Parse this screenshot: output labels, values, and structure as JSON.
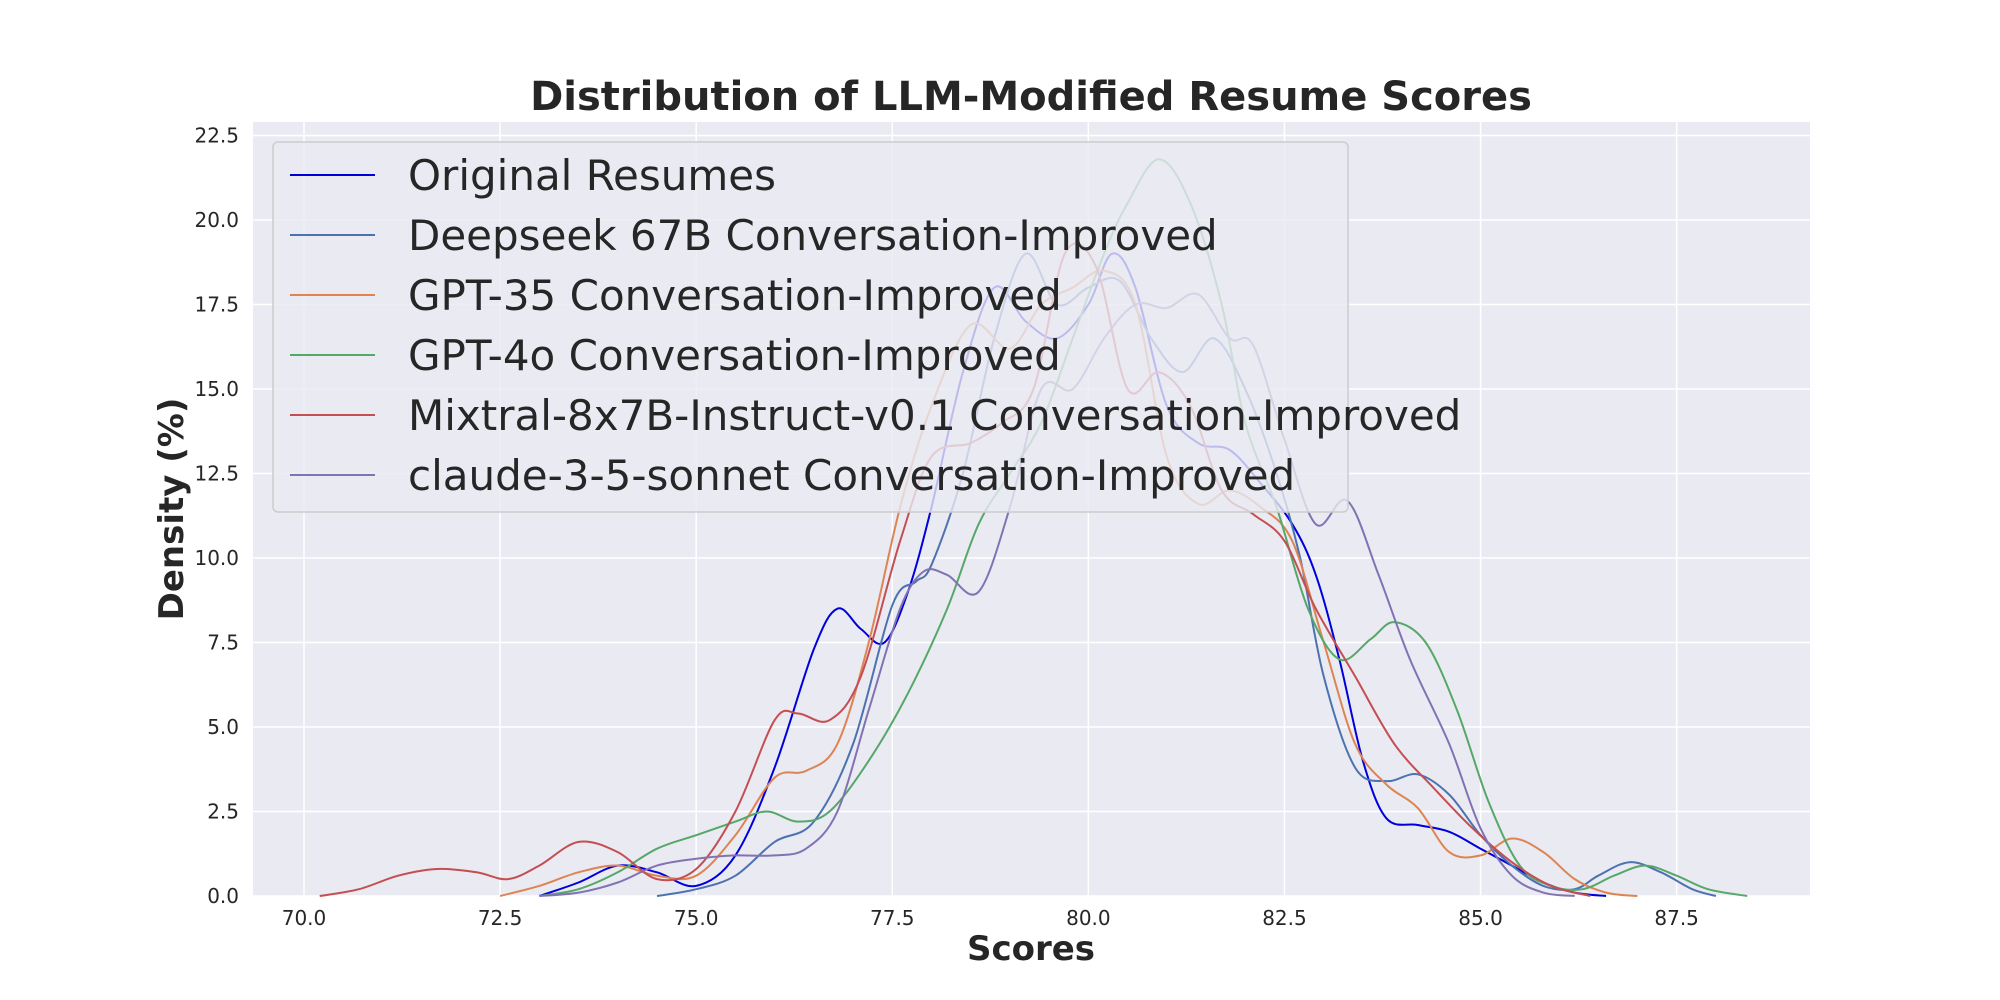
{
  "chart_data": {
    "type": "line",
    "title": "Distribution of LLM-Modified Resume Scores",
    "xlabel": "Scores",
    "ylabel": "Density (%)",
    "xlim": [
      69.35,
      89.2
    ],
    "ylim": [
      0,
      22.9
    ],
    "x_ticks": [
      70.0,
      72.5,
      75.0,
      77.5,
      80.0,
      82.5,
      85.0,
      87.5
    ],
    "y_ticks": [
      0.0,
      2.5,
      5.0,
      7.5,
      10.0,
      12.5,
      15.0,
      17.5,
      20.0,
      22.5
    ],
    "grid": true,
    "legend_position": "upper-left",
    "background": "#eaeaf2",
    "series": [
      {
        "name": "Original Resumes",
        "color": "#0000dd",
        "points": [
          [
            73.0,
            0.0
          ],
          [
            73.5,
            0.4
          ],
          [
            74.0,
            0.9
          ],
          [
            74.5,
            0.7
          ],
          [
            75.0,
            0.3
          ],
          [
            75.5,
            1.2
          ],
          [
            76.0,
            3.8
          ],
          [
            76.5,
            7.3
          ],
          [
            76.8,
            8.5
          ],
          [
            77.1,
            7.9
          ],
          [
            77.4,
            7.5
          ],
          [
            77.7,
            9.0
          ],
          [
            78.0,
            11.5
          ],
          [
            78.4,
            15.5
          ],
          [
            78.8,
            18.0
          ],
          [
            79.2,
            17.0
          ],
          [
            79.6,
            16.5
          ],
          [
            80.0,
            17.5
          ],
          [
            80.3,
            19.0
          ],
          [
            80.6,
            18.0
          ],
          [
            81.0,
            14.5
          ],
          [
            81.4,
            13.4
          ],
          [
            81.8,
            13.2
          ],
          [
            82.2,
            12.2
          ],
          [
            82.6,
            11.0
          ],
          [
            82.9,
            9.5
          ],
          [
            83.2,
            7.0
          ],
          [
            83.5,
            4.0
          ],
          [
            83.8,
            2.3
          ],
          [
            84.2,
            2.1
          ],
          [
            84.6,
            1.9
          ],
          [
            85.0,
            1.4
          ],
          [
            85.4,
            0.9
          ],
          [
            85.8,
            0.4
          ],
          [
            86.2,
            0.1
          ],
          [
            86.6,
            0.0
          ]
        ]
      },
      {
        "name": "Deepseek 67B Conversation-Improved",
        "color": "#4c72b0",
        "points": [
          [
            74.5,
            0.0
          ],
          [
            75.0,
            0.2
          ],
          [
            75.5,
            0.6
          ],
          [
            76.0,
            1.6
          ],
          [
            76.5,
            2.2
          ],
          [
            77.0,
            4.5
          ],
          [
            77.5,
            8.6
          ],
          [
            77.8,
            9.3
          ],
          [
            78.0,
            9.8
          ],
          [
            78.4,
            12.5
          ],
          [
            78.8,
            16.5
          ],
          [
            79.2,
            19.0
          ],
          [
            79.6,
            17.5
          ],
          [
            80.0,
            18.0
          ],
          [
            80.4,
            18.2
          ],
          [
            80.8,
            16.5
          ],
          [
            81.2,
            15.5
          ],
          [
            81.6,
            16.5
          ],
          [
            82.0,
            15.0
          ],
          [
            82.4,
            12.5
          ],
          [
            82.7,
            10.0
          ],
          [
            83.0,
            6.5
          ],
          [
            83.4,
            3.8
          ],
          [
            83.8,
            3.4
          ],
          [
            84.2,
            3.6
          ],
          [
            84.6,
            3.0
          ],
          [
            85.0,
            1.8
          ],
          [
            85.4,
            0.9
          ],
          [
            85.8,
            0.3
          ],
          [
            86.2,
            0.2
          ],
          [
            86.5,
            0.6
          ],
          [
            86.9,
            1.0
          ],
          [
            87.3,
            0.7
          ],
          [
            87.7,
            0.2
          ],
          [
            88.0,
            0.0
          ]
        ]
      },
      {
        "name": "GPT-35 Conversation-Improved",
        "color": "#dd8452",
        "points": [
          [
            72.5,
            0.0
          ],
          [
            73.0,
            0.3
          ],
          [
            73.5,
            0.7
          ],
          [
            74.0,
            0.9
          ],
          [
            74.5,
            0.6
          ],
          [
            75.0,
            0.6
          ],
          [
            75.5,
            1.8
          ],
          [
            76.0,
            3.5
          ],
          [
            76.4,
            3.7
          ],
          [
            76.8,
            4.5
          ],
          [
            77.2,
            7.5
          ],
          [
            77.6,
            11.5
          ],
          [
            78.0,
            14.5
          ],
          [
            78.5,
            16.9
          ],
          [
            79.0,
            16.2
          ],
          [
            79.4,
            17.5
          ],
          [
            79.8,
            18.0
          ],
          [
            80.2,
            18.5
          ],
          [
            80.6,
            17.5
          ],
          [
            81.0,
            13.0
          ],
          [
            81.4,
            11.6
          ],
          [
            81.8,
            12.0
          ],
          [
            82.2,
            11.5
          ],
          [
            82.6,
            10.5
          ],
          [
            83.0,
            7.5
          ],
          [
            83.4,
            4.5
          ],
          [
            83.8,
            3.3
          ],
          [
            84.2,
            2.6
          ],
          [
            84.6,
            1.3
          ],
          [
            85.0,
            1.2
          ],
          [
            85.4,
            1.7
          ],
          [
            85.8,
            1.3
          ],
          [
            86.2,
            0.5
          ],
          [
            86.6,
            0.1
          ],
          [
            87.0,
            0.0
          ]
        ]
      },
      {
        "name": "GPT-4o Conversation-Improved",
        "color": "#55a868",
        "points": [
          [
            73.0,
            0.0
          ],
          [
            73.5,
            0.2
          ],
          [
            74.0,
            0.7
          ],
          [
            74.5,
            1.4
          ],
          [
            75.0,
            1.8
          ],
          [
            75.5,
            2.2
          ],
          [
            75.9,
            2.5
          ],
          [
            76.3,
            2.2
          ],
          [
            76.7,
            2.5
          ],
          [
            77.2,
            4.0
          ],
          [
            77.7,
            6.0
          ],
          [
            78.2,
            8.5
          ],
          [
            78.6,
            11.0
          ],
          [
            79.0,
            12.5
          ],
          [
            79.4,
            14.0
          ],
          [
            79.8,
            16.5
          ],
          [
            80.2,
            19.0
          ],
          [
            80.5,
            20.5
          ],
          [
            80.9,
            21.8
          ],
          [
            81.3,
            20.5
          ],
          [
            81.7,
            17.5
          ],
          [
            82.0,
            14.0
          ],
          [
            82.4,
            11.5
          ],
          [
            82.8,
            8.5
          ],
          [
            83.2,
            7.0
          ],
          [
            83.6,
            7.6
          ],
          [
            83.9,
            8.1
          ],
          [
            84.3,
            7.5
          ],
          [
            84.7,
            5.5
          ],
          [
            85.1,
            2.8
          ],
          [
            85.5,
            0.9
          ],
          [
            85.9,
            0.3
          ],
          [
            86.3,
            0.2
          ],
          [
            86.7,
            0.6
          ],
          [
            87.1,
            0.9
          ],
          [
            87.5,
            0.6
          ],
          [
            87.9,
            0.2
          ],
          [
            88.4,
            0.0
          ]
        ]
      },
      {
        "name": "Mixtral-8x7B-Instruct-v0.1 Conversation-Improved",
        "color": "#c44e52",
        "points": [
          [
            70.2,
            0.0
          ],
          [
            70.7,
            0.2
          ],
          [
            71.2,
            0.6
          ],
          [
            71.7,
            0.8
          ],
          [
            72.2,
            0.7
          ],
          [
            72.6,
            0.5
          ],
          [
            73.0,
            0.9
          ],
          [
            73.5,
            1.6
          ],
          [
            74.0,
            1.3
          ],
          [
            74.5,
            0.5
          ],
          [
            75.0,
            0.8
          ],
          [
            75.5,
            2.5
          ],
          [
            76.0,
            5.2
          ],
          [
            76.3,
            5.4
          ],
          [
            76.7,
            5.2
          ],
          [
            77.1,
            6.5
          ],
          [
            77.6,
            10.5
          ],
          [
            78.0,
            13.0
          ],
          [
            78.5,
            13.4
          ],
          [
            78.9,
            14.0
          ],
          [
            79.3,
            15.0
          ],
          [
            79.7,
            19.0
          ],
          [
            80.1,
            18.6
          ],
          [
            80.5,
            15.0
          ],
          [
            80.9,
            15.5
          ],
          [
            81.3,
            14.5
          ],
          [
            81.7,
            12.0
          ],
          [
            82.1,
            11.3
          ],
          [
            82.5,
            10.5
          ],
          [
            82.9,
            8.5
          ],
          [
            83.4,
            6.5
          ],
          [
            83.9,
            4.5
          ],
          [
            84.4,
            3.2
          ],
          [
            84.9,
            2.0
          ],
          [
            85.4,
            1.0
          ],
          [
            85.9,
            0.3
          ],
          [
            86.4,
            0.0
          ]
        ]
      },
      {
        "name": "claude-3-5-sonnet Conversation-Improved",
        "color": "#8172b3",
        "points": [
          [
            73.0,
            0.0
          ],
          [
            73.5,
            0.1
          ],
          [
            74.0,
            0.4
          ],
          [
            74.5,
            0.9
          ],
          [
            75.0,
            1.1
          ],
          [
            75.5,
            1.2
          ],
          [
            76.0,
            1.2
          ],
          [
            76.4,
            1.4
          ],
          [
            76.8,
            2.5
          ],
          [
            77.2,
            5.5
          ],
          [
            77.6,
            8.5
          ],
          [
            77.9,
            9.6
          ],
          [
            78.2,
            9.5
          ],
          [
            78.6,
            9.0
          ],
          [
            79.0,
            11.5
          ],
          [
            79.4,
            15.0
          ],
          [
            79.8,
            15.0
          ],
          [
            80.2,
            16.5
          ],
          [
            80.6,
            17.5
          ],
          [
            81.0,
            17.4
          ],
          [
            81.4,
            17.8
          ],
          [
            81.8,
            16.5
          ],
          [
            82.1,
            16.3
          ],
          [
            82.5,
            13.5
          ],
          [
            82.9,
            11.0
          ],
          [
            83.3,
            11.7
          ],
          [
            83.7,
            9.5
          ],
          [
            84.1,
            7.0
          ],
          [
            84.6,
            4.5
          ],
          [
            85.0,
            2.0
          ],
          [
            85.4,
            0.6
          ],
          [
            85.8,
            0.1
          ],
          [
            86.2,
            0.0
          ]
        ]
      }
    ]
  }
}
